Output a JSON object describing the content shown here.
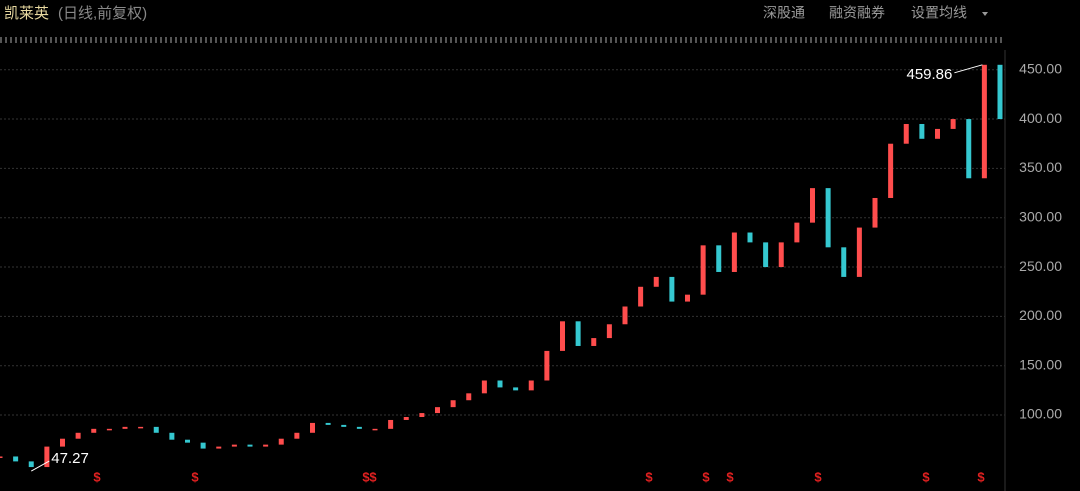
{
  "header": {
    "name": "凯莱英",
    "mode": "(日线,前复权)",
    "menu": [
      "深股通",
      "融资融券",
      "设置均线"
    ]
  },
  "chart_data": {
    "type": "candle-steps",
    "up_color": "#ff4d4d",
    "down_color": "#35c8d0",
    "values": [
      58,
      53,
      47.27,
      68,
      76,
      82,
      86,
      86,
      88,
      88,
      82,
      75,
      72,
      66,
      68,
      70,
      68,
      70,
      76,
      82,
      92,
      90,
      88,
      86,
      86,
      95,
      98,
      102,
      108,
      115,
      122,
      135,
      128,
      125,
      135,
      165,
      195,
      170,
      178,
      192,
      210,
      230,
      240,
      215,
      222,
      272,
      245,
      285,
      275,
      250,
      275,
      295,
      330,
      270,
      240,
      290,
      320,
      375,
      395,
      380,
      390,
      400,
      340,
      455,
      400
    ],
    "ylim": [
      23,
      470
    ],
    "yticks": [
      {
        "value": 100,
        "label": "100.00"
      },
      {
        "value": 150,
        "label": "150.00"
      },
      {
        "value": 200,
        "label": "200.00"
      },
      {
        "value": 250,
        "label": "250.00"
      },
      {
        "value": 300,
        "label": "300.00"
      },
      {
        "value": 350,
        "label": "350.00"
      },
      {
        "value": 400,
        "label": "400.00"
      },
      {
        "value": 450,
        "label": "450.00"
      }
    ],
    "grid": true,
    "annotations": {
      "high": "459.86",
      "low": "47.27"
    },
    "markers": [
      "$",
      "$",
      "$",
      "$",
      "$",
      "$",
      "$",
      "$",
      "$",
      "$"
    ]
  }
}
